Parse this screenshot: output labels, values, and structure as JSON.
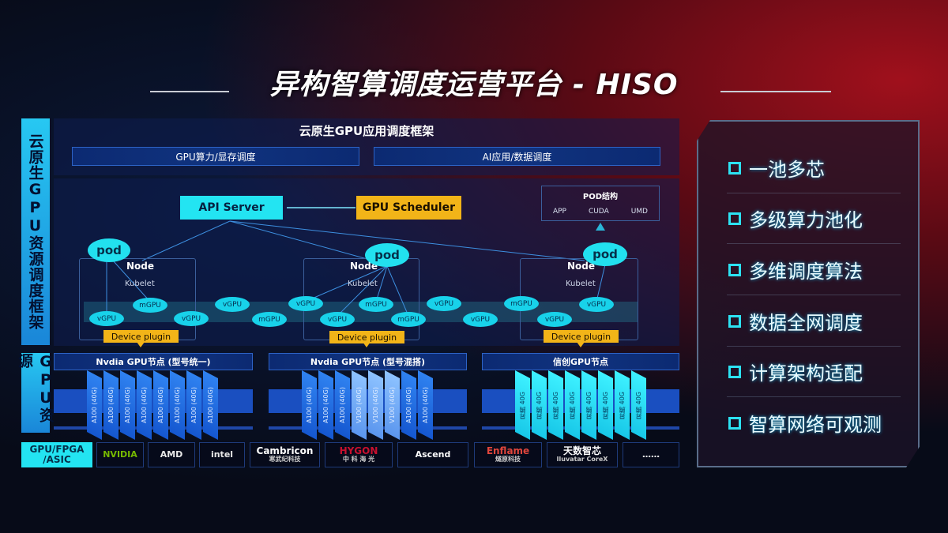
{
  "title": "异构智算调度运营平台 - HISO",
  "side_labels": {
    "framework": "云原生GPU资源调度框架",
    "resources": "GPU资源"
  },
  "framework": {
    "title": "云原生GPU应用调度框架",
    "bar_left": "GPU算力/显存调度",
    "bar_right": "AI应用/数据调度"
  },
  "diagram": {
    "api_server": "API Server",
    "gpu_scheduler": "GPU Scheduler",
    "pod_struct": {
      "title": "POD结构",
      "items": [
        "APP",
        "CUDA",
        "UMD"
      ]
    },
    "pod": "pod",
    "node": "Node",
    "kubelet": "Kubelet",
    "device_plugin": "Device plugin",
    "vgpu": "vGPU",
    "mgpu": "mGPU"
  },
  "gpu_groups": [
    {
      "title": "Nvdia GPU节点 (型号统一)",
      "chips": [
        "A100 (40G)",
        "A100 (40G)",
        "A100 (40G)",
        "A100 (40G)",
        "A100 (40G)",
        "A100 (40G)",
        "A100 (40G)",
        "A100 (40G)"
      ]
    },
    {
      "title": "Nvdia GPU节点 (型号混搭)",
      "chips": [
        "A100 (40G)",
        "A100 (40G)",
        "A100 (40G)",
        "V100 (40G)",
        "V100 (40G)",
        "V100 (40G)",
        "A100 (40G)",
        "A100 (40G)"
      ]
    },
    {
      "title": "信创GPU节点",
      "chips": [
        "昇腾 40G",
        "昇腾 40G",
        "昇腾 40G",
        "昇腾 40G",
        "昇腾 40G",
        "昇腾 40G",
        "昇腾 40G",
        "昇腾 40G"
      ]
    }
  ],
  "vendors": {
    "label": "GPU/FPGA /ASIC",
    "items": [
      {
        "name": "NVIDIA",
        "sub": ""
      },
      {
        "name": "AMD",
        "sub": ""
      },
      {
        "name": "intel",
        "sub": ""
      },
      {
        "name": "Cambricon",
        "sub": "寒武纪科技"
      },
      {
        "name": "HYGON",
        "sub": "中 科 海 光"
      },
      {
        "name": "Ascend",
        "sub": ""
      },
      {
        "name": "Enflame",
        "sub": "燧原科技"
      },
      {
        "name": "天数智芯",
        "sub": "Iluvatar CoreX"
      },
      {
        "name": "……",
        "sub": ""
      }
    ]
  },
  "features": [
    "一池多芯",
    "多级算力池化",
    "多维调度算法",
    "数据全网调度",
    "计算架构适配",
    "智算网络可观测"
  ],
  "colors": {
    "cyan": "#23e4f2",
    "yellow": "#f2b418",
    "blue": "#1557d0",
    "red": "#a0101c"
  }
}
